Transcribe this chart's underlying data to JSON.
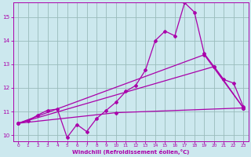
{
  "bg_color": "#cce8ee",
  "line_color": "#aa00aa",
  "grid_color": "#99bbbb",
  "xlabel": "Windchill (Refroidissement éolien,°C)",
  "xlabel_color": "#aa00aa",
  "yticks": [
    10,
    11,
    12,
    13,
    14,
    15
  ],
  "xticks": [
    0,
    1,
    2,
    3,
    4,
    5,
    6,
    7,
    8,
    9,
    10,
    11,
    12,
    13,
    14,
    15,
    16,
    17,
    18,
    19,
    20,
    21,
    22,
    23
  ],
  "xlim": [
    -0.5,
    23.5
  ],
  "ylim": [
    9.75,
    15.6
  ],
  "line1_x": [
    0,
    1,
    2,
    3,
    4,
    5,
    6,
    7,
    8,
    9,
    10,
    11,
    12,
    13,
    14,
    15,
    16,
    17,
    18,
    19,
    20,
    21,
    22,
    23
  ],
  "line1_y": [
    10.5,
    10.6,
    10.85,
    11.05,
    11.1,
    9.9,
    10.45,
    10.15,
    10.7,
    11.05,
    11.4,
    11.85,
    12.1,
    12.75,
    14.0,
    14.4,
    14.2,
    15.6,
    15.2,
    13.45,
    12.9,
    12.35,
    12.2,
    11.2
  ],
  "line2_x": [
    0,
    10,
    23
  ],
  "line2_y": [
    10.5,
    10.95,
    11.15
  ],
  "line3_x": [
    0,
    19,
    23
  ],
  "line3_y": [
    10.5,
    13.4,
    11.15
  ],
  "line4_x": [
    0,
    20,
    23
  ],
  "line4_y": [
    10.5,
    12.9,
    11.15
  ],
  "marker": "D",
  "markersize": 2.0,
  "linewidth": 0.9,
  "figwidth": 3.2,
  "figheight": 2.0,
  "dpi": 100
}
